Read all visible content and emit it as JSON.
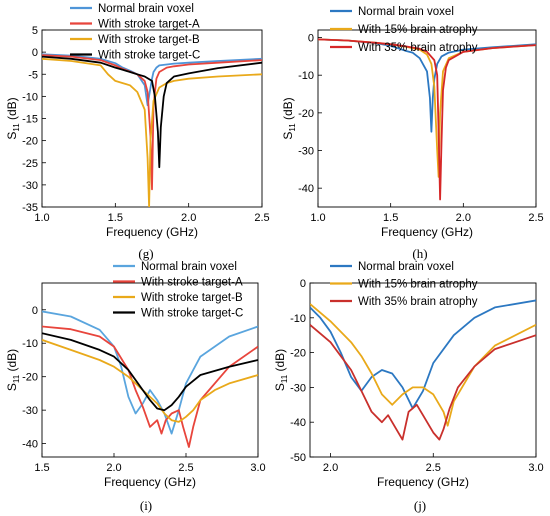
{
  "chart_data": [
    {
      "type": "line",
      "panel_label": "(g)",
      "xlabel": "Frequency (GHz)",
      "ylabel": "S11 (dB)",
      "xlim": [
        1.0,
        2.5
      ],
      "ylim": [
        -35,
        5
      ],
      "xticks": [
        1.0,
        1.5,
        2.0,
        2.5
      ],
      "yticks": [
        5,
        0,
        -5,
        -10,
        -15,
        -20,
        -25,
        -30,
        -35
      ],
      "grid": false,
      "legend_position": "top-center",
      "series": [
        {
          "name": "Normal brain voxel",
          "color": "#4f95d8",
          "x": [
            1.0,
            1.2,
            1.4,
            1.5,
            1.55,
            1.6,
            1.65,
            1.7,
            1.72,
            1.74,
            1.75,
            1.76,
            1.78,
            1.8,
            1.85,
            1.9,
            2.0,
            2.2,
            2.5
          ],
          "y": [
            -0.5,
            -0.8,
            -1.5,
            -2.5,
            -3.5,
            -4.2,
            -5.0,
            -7.5,
            -12.0,
            -8.0,
            -6.0,
            -4.5,
            -3.5,
            -3.0,
            -2.8,
            -2.6,
            -2.4,
            -2.0,
            -1.5
          ]
        },
        {
          "name": "With stroke target-A",
          "color": "#e8453c",
          "x": [
            1.0,
            1.2,
            1.4,
            1.5,
            1.55,
            1.6,
            1.65,
            1.7,
            1.72,
            1.74,
            1.75,
            1.76,
            1.78,
            1.8,
            1.85,
            1.9,
            2.0,
            2.2,
            2.5
          ],
          "y": [
            -0.7,
            -1.0,
            -1.8,
            -3.0,
            -3.8,
            -4.4,
            -5.0,
            -6.5,
            -9.0,
            -19.0,
            -31.0,
            -12.0,
            -6.0,
            -4.5,
            -3.5,
            -3.2,
            -2.8,
            -2.4,
            -1.8
          ]
        },
        {
          "name": "With stroke target-B",
          "color": "#e9a91a",
          "x": [
            1.0,
            1.2,
            1.4,
            1.45,
            1.5,
            1.55,
            1.6,
            1.65,
            1.7,
            1.72,
            1.73,
            1.74,
            1.76,
            1.8,
            1.85,
            1.9,
            2.0,
            2.2,
            2.5
          ],
          "y": [
            -1.5,
            -2.0,
            -3.0,
            -5.0,
            -6.5,
            -7.0,
            -7.5,
            -9.0,
            -13.0,
            -24.0,
            -35.0,
            -20.0,
            -11.0,
            -8.0,
            -7.0,
            -6.5,
            -6.0,
            -5.5,
            -5.0
          ]
        },
        {
          "name": "With stroke target-C",
          "color": "#000000",
          "x": [
            1.0,
            1.2,
            1.4,
            1.5,
            1.55,
            1.6,
            1.65,
            1.7,
            1.75,
            1.77,
            1.79,
            1.8,
            1.81,
            1.83,
            1.85,
            1.9,
            2.0,
            2.2,
            2.5
          ],
          "y": [
            -1.0,
            -1.5,
            -2.4,
            -3.5,
            -4.0,
            -4.5,
            -5.0,
            -5.5,
            -6.5,
            -10.0,
            -18.0,
            -26.0,
            -17.0,
            -10.0,
            -7.0,
            -5.5,
            -4.8,
            -3.6,
            -2.4
          ]
        }
      ]
    },
    {
      "type": "line",
      "panel_label": "(h)",
      "xlabel": "Frequency (GHz)",
      "ylabel": "S11 (dB)",
      "xlim": [
        1.0,
        2.5
      ],
      "ylim": [
        -45,
        2
      ],
      "xticks": [
        1.0,
        1.5,
        2.0,
        2.5
      ],
      "yticks": [
        0,
        -10,
        -20,
        -30,
        -40
      ],
      "grid": false,
      "legend_position": "top-center",
      "series": [
        {
          "name": "Normal brain voxel",
          "color": "#2c78c2",
          "x": [
            1.0,
            1.2,
            1.4,
            1.5,
            1.6,
            1.65,
            1.7,
            1.75,
            1.77,
            1.78,
            1.79,
            1.8,
            1.82,
            1.85,
            1.9,
            2.0,
            2.2,
            2.5
          ],
          "y": [
            -0.5,
            -0.8,
            -1.5,
            -2.2,
            -3.5,
            -4.0,
            -5.5,
            -9.0,
            -16.0,
            -25.0,
            -16.0,
            -11.0,
            -7.0,
            -5.0,
            -4.0,
            -3.2,
            -2.6,
            -1.8
          ]
        },
        {
          "name": "With 15% brain atrophy",
          "color": "#e9a91a",
          "x": [
            1.0,
            1.2,
            1.4,
            1.5,
            1.6,
            1.7,
            1.75,
            1.78,
            1.8,
            1.82,
            1.83,
            1.84,
            1.86,
            1.9,
            2.0,
            2.2,
            2.5
          ],
          "y": [
            -0.5,
            -0.8,
            -1.4,
            -1.8,
            -2.4,
            -3.2,
            -4.5,
            -7.0,
            -13.0,
            -30.0,
            -37.0,
            -20.0,
            -9.0,
            -5.5,
            -3.8,
            -2.8,
            -2.0
          ]
        },
        {
          "name": "With 35% brain atrophy",
          "color": "#d62728",
          "x": [
            1.0,
            1.2,
            1.4,
            1.5,
            1.6,
            1.7,
            1.75,
            1.8,
            1.82,
            1.83,
            1.84,
            1.85,
            1.86,
            1.88,
            1.9,
            2.0,
            2.2,
            2.5
          ],
          "y": [
            -0.5,
            -0.8,
            -1.4,
            -1.8,
            -2.3,
            -3.0,
            -3.8,
            -6.0,
            -10.0,
            -25.0,
            -43.0,
            -28.0,
            -14.0,
            -8.0,
            -6.0,
            -3.8,
            -2.8,
            -2.0
          ]
        }
      ]
    },
    {
      "type": "line",
      "panel_label": "(i)",
      "xlabel": "Frequency (GHz)",
      "ylabel": "S11 (dB)",
      "xlim": [
        1.5,
        3.0
      ],
      "ylim": [
        -44,
        8
      ],
      "xticks": [
        1.5,
        2.0,
        2.5,
        3.0
      ],
      "yticks": [
        0,
        -10,
        -20,
        -30,
        -40
      ],
      "grid": false,
      "legend_position": "top-right",
      "series": [
        {
          "name": "Normal brain voxel",
          "color": "#5aa5de",
          "x": [
            1.5,
            1.7,
            1.9,
            2.0,
            2.05,
            2.1,
            2.15,
            2.2,
            2.25,
            2.3,
            2.35,
            2.4,
            2.45,
            2.5,
            2.6,
            2.8,
            3.0
          ],
          "y": [
            -0.5,
            -2.0,
            -6.0,
            -11.0,
            -17.0,
            -26.0,
            -31.0,
            -28.0,
            -24.0,
            -27.0,
            -31.0,
            -37.0,
            -30.0,
            -22.0,
            -14.0,
            -8.0,
            -5.0
          ]
        },
        {
          "name": "With stroke target-A",
          "color": "#e8453c",
          "x": [
            1.5,
            1.7,
            1.9,
            2.0,
            2.1,
            2.15,
            2.2,
            2.25,
            2.3,
            2.33,
            2.36,
            2.4,
            2.45,
            2.48,
            2.52,
            2.55,
            2.6,
            2.8,
            3.0
          ],
          "y": [
            -5.0,
            -5.8,
            -8.0,
            -11.0,
            -18.0,
            -24.0,
            -29.0,
            -35.0,
            -33.0,
            -37.0,
            -33.0,
            -31.0,
            -30.0,
            -35.0,
            -41.0,
            -35.0,
            -27.0,
            -17.0,
            -11.0
          ]
        },
        {
          "name": "With stroke target-B",
          "color": "#e9a91a",
          "x": [
            1.5,
            1.7,
            1.9,
            2.0,
            2.1,
            2.2,
            2.3,
            2.35,
            2.4,
            2.45,
            2.5,
            2.55,
            2.6,
            2.7,
            2.8,
            3.0
          ],
          "y": [
            -9.0,
            -12.0,
            -15.0,
            -17.0,
            -20.0,
            -24.0,
            -28.0,
            -31.0,
            -33.0,
            -33.5,
            -32.0,
            -30.0,
            -27.0,
            -24.0,
            -22.0,
            -19.5
          ]
        },
        {
          "name": "With stroke target-C",
          "color": "#000000",
          "x": [
            1.5,
            1.7,
            1.9,
            2.0,
            2.1,
            2.2,
            2.25,
            2.3,
            2.35,
            2.4,
            2.45,
            2.5,
            2.6,
            2.8,
            3.0
          ],
          "y": [
            -7.0,
            -9.0,
            -12.0,
            -14.0,
            -18.0,
            -24.0,
            -27.0,
            -29.5,
            -30.0,
            -28.5,
            -26.0,
            -23.0,
            -19.5,
            -17.0,
            -15.0
          ]
        }
      ]
    },
    {
      "type": "line",
      "panel_label": "(j)",
      "xlabel": "Frequency (GHz)",
      "ylabel": "S11 (dB)",
      "xlim": [
        1.9,
        3.0
      ],
      "ylim": [
        -50,
        0
      ],
      "xticks": [
        2.0,
        2.5,
        3.0
      ],
      "yticks": [
        0,
        -10,
        -20,
        -30,
        -40,
        -50
      ],
      "grid": false,
      "legend_position": "top-right",
      "series": [
        {
          "name": "Normal brain voxel",
          "color": "#2c78c2",
          "x": [
            1.9,
            1.95,
            2.0,
            2.05,
            2.1,
            2.15,
            2.2,
            2.25,
            2.3,
            2.35,
            2.4,
            2.45,
            2.5,
            2.6,
            2.7,
            2.8,
            3.0
          ],
          "y": [
            -7.0,
            -10.0,
            -14.0,
            -20.0,
            -27.0,
            -31.0,
            -27.0,
            -25.0,
            -26.0,
            -30.0,
            -36.0,
            -31.0,
            -23.0,
            -15.0,
            -10.0,
            -7.0,
            -5.0
          ]
        },
        {
          "name": "With 15% brain atrophy",
          "color": "#e9a91a",
          "x": [
            1.9,
            2.0,
            2.1,
            2.15,
            2.2,
            2.25,
            2.3,
            2.35,
            2.4,
            2.45,
            2.5,
            2.55,
            2.57,
            2.6,
            2.7,
            2.8,
            3.0
          ],
          "y": [
            -6.0,
            -11.0,
            -17.0,
            -21.0,
            -26.0,
            -32.0,
            -35.0,
            -32.0,
            -30.0,
            -30.0,
            -32.0,
            -37.0,
            -41.0,
            -34.0,
            -24.0,
            -18.0,
            -12.0
          ]
        },
        {
          "name": "With 35% brain atrophy",
          "color": "#c9302c",
          "x": [
            1.9,
            2.0,
            2.1,
            2.15,
            2.2,
            2.25,
            2.28,
            2.3,
            2.33,
            2.35,
            2.38,
            2.42,
            2.45,
            2.5,
            2.53,
            2.55,
            2.58,
            2.62,
            2.7,
            2.8,
            3.0
          ],
          "y": [
            -12.0,
            -17.0,
            -25.0,
            -31.0,
            -37.0,
            -40.0,
            -38.0,
            -40.0,
            -43.0,
            -45.0,
            -37.0,
            -35.0,
            -38.0,
            -43.0,
            -45.0,
            -42.0,
            -36.0,
            -30.0,
            -24.0,
            -19.0,
            -15.0
          ]
        }
      ]
    }
  ]
}
